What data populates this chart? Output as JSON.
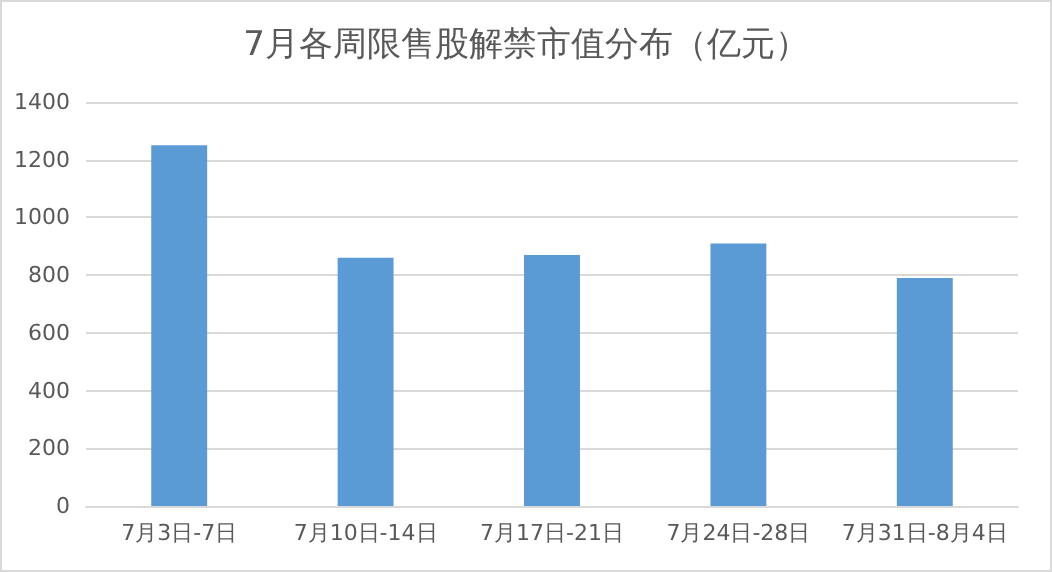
{
  "chart_data": {
    "type": "bar",
    "title": "7月各周限售股解禁市值分布（亿元）",
    "categories": [
      "7月3日-7日",
      "7月10日-14日",
      "7月17日-21日",
      "7月24日-28日",
      "7月31日-8月4日"
    ],
    "values": [
      1250,
      860,
      870,
      910,
      790
    ],
    "color": "#5b9bd5",
    "ylim": [
      0,
      1400
    ],
    "yticks": [
      0,
      200,
      400,
      600,
      800,
      1000,
      1200,
      1400
    ],
    "grid": "y"
  }
}
